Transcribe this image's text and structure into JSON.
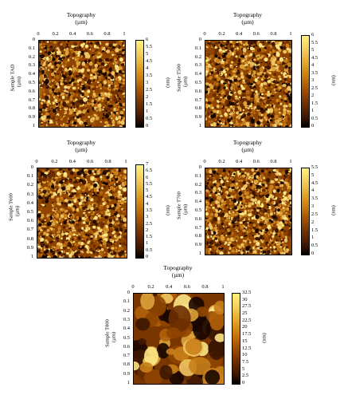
{
  "panels": [
    {
      "id": "tad",
      "title": "Topography",
      "unit": "(µm)",
      "sample": "Sample TAD",
      "cb_unit": "(nm)",
      "x_ticks": [
        "0",
        "0.2",
        "0.4",
        "0.6",
        "0.8",
        "1"
      ],
      "y_ticks": [
        "0",
        "0.1",
        "0.2",
        "0.3",
        "0.4",
        "0.5",
        "0.6",
        "0.7",
        "0.8",
        "0.9",
        "1"
      ],
      "cb_ticks": [
        "6",
        "5.5",
        "5",
        "4.5",
        "4",
        "3.5",
        "3",
        "2.5",
        "2",
        "1.5",
        "1",
        "0.5",
        "0"
      ],
      "texture": "fine"
    },
    {
      "id": "t500",
      "title": "Topography",
      "unit": "(µm)",
      "sample": "Sample T500",
      "cb_unit": "(nm)",
      "x_ticks": [
        "0",
        "0.2",
        "0.4",
        "0.6",
        "0.8",
        "1"
      ],
      "y_ticks": [
        "0",
        "0.1",
        "0.2",
        "0.3",
        "0.4",
        "0.5",
        "0.6",
        "0.7",
        "0.8",
        "0.9",
        "1"
      ],
      "cb_ticks": [
        "6",
        "5.5",
        "5",
        "4.5",
        "4",
        "3.5",
        "3",
        "2.5",
        "2",
        "1.5",
        "1",
        "0.5",
        "0"
      ],
      "texture": "fine"
    },
    {
      "id": "t600",
      "title": "Topography",
      "unit": "(µm)",
      "sample": "Sample T600",
      "cb_unit": "(nm)",
      "x_ticks": [
        "0",
        "0.2",
        "0.4",
        "0.6",
        "0.8",
        "1"
      ],
      "y_ticks": [
        "0",
        "0.1",
        "0.2",
        "0.3",
        "0.4",
        "0.5",
        "0.6",
        "0.7",
        "0.8",
        "0.9",
        "1"
      ],
      "cb_ticks": [
        "7",
        "6.5",
        "6",
        "5.5",
        "5",
        "4.5",
        "4",
        "3.5",
        "3",
        "2.5",
        "2",
        "1.5",
        "1",
        "0.5",
        "0"
      ],
      "texture": "fine"
    },
    {
      "id": "t700",
      "title": "Topography",
      "unit": "(µm)",
      "sample": "Sample T700",
      "cb_unit": "(nm)",
      "x_ticks": [
        "0",
        "0.2",
        "0.4",
        "0.6",
        "0.8",
        "1"
      ],
      "y_ticks": [
        "0",
        "0.1",
        "0.2",
        "0.3",
        "0.4",
        "0.5",
        "0.6",
        "0.7",
        "0.8",
        "0.9",
        "1"
      ],
      "cb_ticks": [
        "5.5",
        "5",
        "4.5",
        "4",
        "3.5",
        "3",
        "2.5",
        "2",
        "1.5",
        "1",
        "0.5",
        "0"
      ],
      "texture": "fine"
    },
    {
      "id": "t800",
      "title": "Topography",
      "unit": "(µm)",
      "sample": "Sample T800",
      "cb_unit": "(nm)",
      "x_ticks": [
        "0",
        "0.2",
        "0.4",
        "0.6",
        "0.8",
        "1"
      ],
      "y_ticks": [
        "0",
        "0.1",
        "0.2",
        "0.3",
        "0.4",
        "0.5",
        "0.6",
        "0.7",
        "0.8",
        "0.9",
        "1"
      ],
      "cb_ticks": [
        "32.5",
        "30",
        "27.5",
        "25",
        "22.5",
        "20",
        "17.5",
        "15",
        "12.5",
        "10",
        "7.5",
        "5",
        "2.5",
        "0"
      ],
      "texture": "coarse"
    }
  ]
}
